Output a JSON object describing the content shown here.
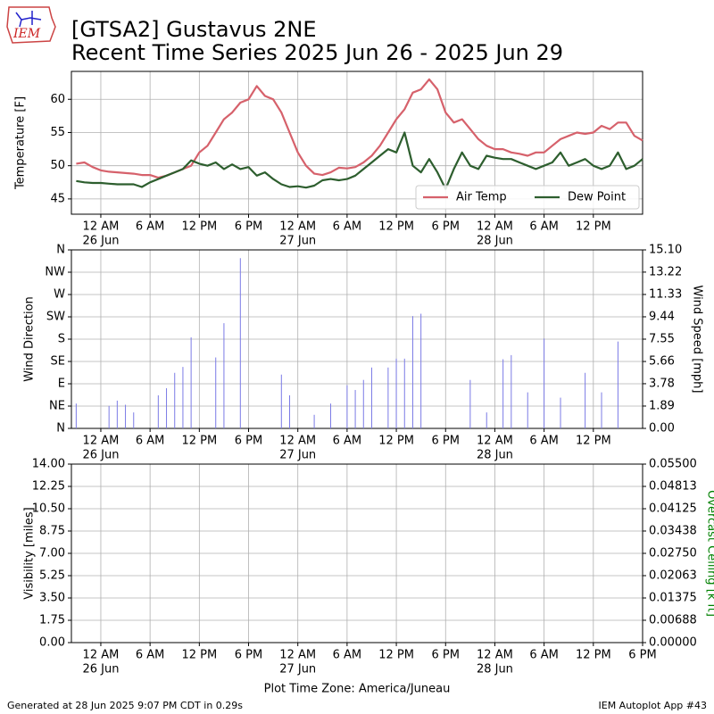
{
  "logo": "IEM",
  "footer": {
    "left": "Generated at 28 Jun 2025 9:07 PM CDT in 0.29s",
    "right": "IEM Autoplot App #43"
  },
  "chart_data": [
    {
      "type": "line",
      "title": "[GTSA2] Gustavus 2NE",
      "subtitle": "Recent Time Series 2025 Jun 26 - 2025 Jun 29",
      "ylabel": "Temperature [F]",
      "grid": true,
      "legend": "lower right",
      "xlim": [
        "2025-06-25T20:25",
        "2025-06-28T18:00"
      ],
      "xticks": [
        {
          "value": "2025-06-26T00:00",
          "label": [
            "12 AM",
            "26 Jun"
          ]
        },
        {
          "value": "2025-06-26T06:00",
          "label": "6 AM"
        },
        {
          "value": "2025-06-26T12:00",
          "label": "12 PM"
        },
        {
          "value": "2025-06-26T18:00",
          "label": "6 PM"
        },
        {
          "value": "2025-06-27T00:00",
          "label": [
            "12 AM",
            "27 Jun"
          ]
        },
        {
          "value": "2025-06-27T06:00",
          "label": "6 AM"
        },
        {
          "value": "2025-06-27T12:00",
          "label": "12 PM"
        },
        {
          "value": "2025-06-27T18:00",
          "label": "6 PM"
        },
        {
          "value": "2025-06-28T00:00",
          "label": [
            "12 AM",
            "28 Jun"
          ]
        },
        {
          "value": "2025-06-28T06:00",
          "label": "6 AM"
        },
        {
          "value": "2025-06-28T12:00",
          "label": "12 PM"
        }
      ],
      "ylim": [
        42.7,
        64.2
      ],
      "yticks": [
        45,
        50,
        55,
        60
      ],
      "x": [
        "2025-06-25T21:00",
        "2025-06-25T22:00",
        "2025-06-25T23:00",
        "2025-06-26T00:00",
        "2025-06-26T01:00",
        "2025-06-26T02:00",
        "2025-06-26T03:00",
        "2025-06-26T04:00",
        "2025-06-26T05:00",
        "2025-06-26T06:00",
        "2025-06-26T07:00",
        "2025-06-26T08:00",
        "2025-06-26T09:00",
        "2025-06-26T10:00",
        "2025-06-26T11:00",
        "2025-06-26T12:00",
        "2025-06-26T13:00",
        "2025-06-26T14:00",
        "2025-06-26T15:00",
        "2025-06-26T16:00",
        "2025-06-26T17:00",
        "2025-06-26T18:00",
        "2025-06-26T19:00",
        "2025-06-26T20:00",
        "2025-06-26T21:00",
        "2025-06-26T22:00",
        "2025-06-26T23:00",
        "2025-06-27T00:00",
        "2025-06-27T01:00",
        "2025-06-27T02:00",
        "2025-06-27T03:00",
        "2025-06-27T04:00",
        "2025-06-27T05:00",
        "2025-06-27T06:00",
        "2025-06-27T07:00",
        "2025-06-27T08:00",
        "2025-06-27T09:00",
        "2025-06-27T10:00",
        "2025-06-27T11:00",
        "2025-06-27T12:00",
        "2025-06-27T13:00",
        "2025-06-27T14:00",
        "2025-06-27T15:00",
        "2025-06-27T16:00",
        "2025-06-27T17:00",
        "2025-06-27T18:00",
        "2025-06-27T19:00",
        "2025-06-27T20:00",
        "2025-06-27T21:00",
        "2025-06-27T22:00",
        "2025-06-27T23:00",
        "2025-06-28T00:00",
        "2025-06-28T01:00",
        "2025-06-28T02:00",
        "2025-06-28T03:00",
        "2025-06-28T04:00",
        "2025-06-28T05:00",
        "2025-06-28T06:00",
        "2025-06-28T07:00",
        "2025-06-28T08:00",
        "2025-06-28T09:00",
        "2025-06-28T10:00",
        "2025-06-28T11:00",
        "2025-06-28T12:00",
        "2025-06-28T13:00",
        "2025-06-28T14:00",
        "2025-06-28T15:00",
        "2025-06-28T16:00",
        "2025-06-28T17:00",
        "2025-06-28T18:00"
      ],
      "series": [
        {
          "name": "Air Temp",
          "color": "#d6616b",
          "values": [
            50.3,
            50.5,
            49.8,
            49.3,
            49.1,
            49.0,
            48.9,
            48.8,
            48.6,
            48.6,
            48.2,
            48.5,
            49,
            49.5,
            50,
            52,
            53,
            55,
            57,
            58,
            59.5,
            60,
            62,
            60.5,
            60,
            58,
            55,
            52,
            50,
            48.8,
            48.6,
            49,
            49.7,
            49.6,
            49.8,
            50.5,
            51.5,
            53,
            55,
            57,
            58.5,
            61,
            61.5,
            63,
            61.5,
            58,
            56.5,
            57,
            55.5,
            54,
            53,
            52.5,
            52.5,
            52,
            51.8,
            51.5,
            52,
            52,
            53,
            54,
            54.5,
            55,
            54.8,
            55,
            56,
            55.5,
            56.5,
            56.5,
            54.5,
            53.8
          ]
        },
        {
          "name": "Dew Point",
          "color": "#2d5e2e",
          "values": [
            47.7,
            47.5,
            47.4,
            47.4,
            47.3,
            47.2,
            47.2,
            47.2,
            46.8,
            47.5,
            48,
            48.5,
            49,
            49.5,
            50.8,
            50.3,
            50,
            50.5,
            49.5,
            50.2,
            49.5,
            49.8,
            48.5,
            49,
            48,
            47.2,
            46.8,
            46.9,
            46.7,
            47,
            47.8,
            48,
            47.8,
            48,
            48.5,
            49.5,
            50.5,
            51.5,
            52.5,
            52,
            55,
            50,
            49,
            51,
            49,
            46.5,
            49.5,
            52,
            50,
            49.5,
            51.5,
            51.2,
            51,
            51,
            50.5,
            50,
            49.5,
            50,
            50.5,
            52,
            50,
            50.5,
            51,
            50,
            49.5,
            50,
            52,
            49.5,
            50,
            51
          ]
        }
      ]
    },
    {
      "type": "bar",
      "ylabel": "Wind Direction",
      "y2label": "Wind Speed [mph]",
      "grid": true,
      "axis": "y2",
      "color": "#7b7be6",
      "xlim": [
        "2025-06-25T20:25",
        "2025-06-28T18:00"
      ],
      "xticks": [
        {
          "value": "2025-06-26T00:00",
          "label": [
            "12 AM",
            "26 Jun"
          ]
        },
        {
          "value": "2025-06-26T06:00",
          "label": "6 AM"
        },
        {
          "value": "2025-06-26T12:00",
          "label": "12 PM"
        },
        {
          "value": "2025-06-26T18:00",
          "label": "6 PM"
        },
        {
          "value": "2025-06-27T00:00",
          "label": [
            "12 AM",
            "27 Jun"
          ]
        },
        {
          "value": "2025-06-27T06:00",
          "label": "6 AM"
        },
        {
          "value": "2025-06-27T12:00",
          "label": "12 PM"
        },
        {
          "value": "2025-06-27T18:00",
          "label": "6 PM"
        },
        {
          "value": "2025-06-28T00:00",
          "label": [
            "12 AM",
            "28 Jun"
          ]
        },
        {
          "value": "2025-06-28T06:00",
          "label": "6 AM"
        },
        {
          "value": "2025-06-28T12:00",
          "label": "12 PM"
        }
      ],
      "ylim": [
        0,
        360
      ],
      "yticks": [
        {
          "value": 0,
          "label": "N"
        },
        {
          "value": 45,
          "label": "NE"
        },
        {
          "value": 90,
          "label": "E"
        },
        {
          "value": 135,
          "label": "SE"
        },
        {
          "value": 180,
          "label": "S"
        },
        {
          "value": 225,
          "label": "SW"
        },
        {
          "value": 270,
          "label": "W"
        },
        {
          "value": 315,
          "label": "NW"
        },
        {
          "value": 360,
          "label": "N"
        }
      ],
      "y2lim": [
        0,
        15.1
      ],
      "y2ticks": [
        {
          "value": 0,
          "label": "0.00"
        },
        1.89,
        3.78,
        5.66,
        7.55,
        9.44,
        11.33,
        13.22,
        {
          "value": 15.1,
          "label": "15.10"
        }
      ],
      "x": [
        "2025-06-25T21:00",
        "2025-06-26T01:00",
        "2025-06-26T02:00",
        "2025-06-26T03:00",
        "2025-06-26T04:00",
        "2025-06-26T07:00",
        "2025-06-26T08:00",
        "2025-06-26T09:00",
        "2025-06-26T10:00",
        "2025-06-26T11:00",
        "2025-06-26T14:00",
        "2025-06-26T15:00",
        "2025-06-26T17:00",
        "2025-06-26T22:00",
        "2025-06-26T23:00",
        "2025-06-27T02:00",
        "2025-06-27T04:00",
        "2025-06-27T06:00",
        "2025-06-27T07:00",
        "2025-06-27T08:00",
        "2025-06-27T09:00",
        "2025-06-27T11:00",
        "2025-06-27T12:00",
        "2025-06-27T13:00",
        "2025-06-27T14:00",
        "2025-06-27T15:00",
        "2025-06-27T21:00",
        "2025-06-27T23:00",
        "2025-06-28T01:00",
        "2025-06-28T02:00",
        "2025-06-28T04:00",
        "2025-06-28T06:00",
        "2025-06-28T08:00",
        "2025-06-28T11:00",
        "2025-06-28T13:00",
        "2025-06-28T15:00"
      ],
      "values": [
        2.1,
        1.9,
        2.35,
        2.0,
        1.35,
        2.8,
        3.4,
        4.7,
        5.2,
        7.7,
        6.0,
        8.9,
        14.4,
        4.55,
        2.8,
        1.15,
        2.1,
        3.65,
        3.25,
        4.1,
        5.15,
        5.15,
        5.9,
        5.9,
        9.5,
        9.7,
        4.1,
        1.35,
        5.85,
        6.2,
        3.05,
        7.6,
        2.6,
        4.7,
        3.05,
        7.35
      ]
    },
    {
      "type": "line",
      "ylabel": "Visibility [miles]",
      "y2label": "Overcast Ceiling [k ft]",
      "y2label_color": "green",
      "xlabel": "Plot Time Zone: America/Juneau",
      "grid": true,
      "xlim": [
        "2025-06-25T20:25",
        "2025-06-28T18:00"
      ],
      "xticks": [
        {
          "value": "2025-06-26T00:00",
          "label": [
            "12 AM",
            "26 Jun"
          ]
        },
        {
          "value": "2025-06-26T06:00",
          "label": "6 AM"
        },
        {
          "value": "2025-06-26T12:00",
          "label": "12 PM"
        },
        {
          "value": "2025-06-26T18:00",
          "label": "6 PM"
        },
        {
          "value": "2025-06-27T00:00",
          "label": [
            "12 AM",
            "27 Jun"
          ]
        },
        {
          "value": "2025-06-27T06:00",
          "label": "6 AM"
        },
        {
          "value": "2025-06-27T12:00",
          "label": "12 PM"
        },
        {
          "value": "2025-06-27T18:00",
          "label": "6 PM"
        },
        {
          "value": "2025-06-28T00:00",
          "label": [
            "12 AM",
            "28 Jun"
          ]
        },
        {
          "value": "2025-06-28T06:00",
          "label": "6 AM"
        },
        {
          "value": "2025-06-28T12:00",
          "label": "12 PM"
        },
        {
          "value": "2025-06-28T18:00",
          "label": "6 PM"
        }
      ],
      "ylim": [
        0,
        14
      ],
      "yticks": [
        {
          "value": 0,
          "label": "0.00"
        },
        1.75,
        {
          "value": 3.5,
          "label": "3.50"
        },
        5.25,
        {
          "value": 7,
          "label": "7.00"
        },
        8.75,
        {
          "value": 10.5,
          "label": "10.50"
        },
        12.25,
        {
          "value": 14,
          "label": "14.00"
        }
      ],
      "y2lim": [
        0,
        0.055
      ],
      "y2ticks": [
        {
          "value": 0,
          "label": "0.00000"
        },
        0.00688,
        0.01375,
        0.02063,
        {
          "value": 0.0275,
          "label": "0.02750"
        },
        0.03438,
        0.04125,
        0.04813,
        {
          "value": 0.055,
          "label": "0.05500"
        }
      ],
      "series": []
    }
  ]
}
